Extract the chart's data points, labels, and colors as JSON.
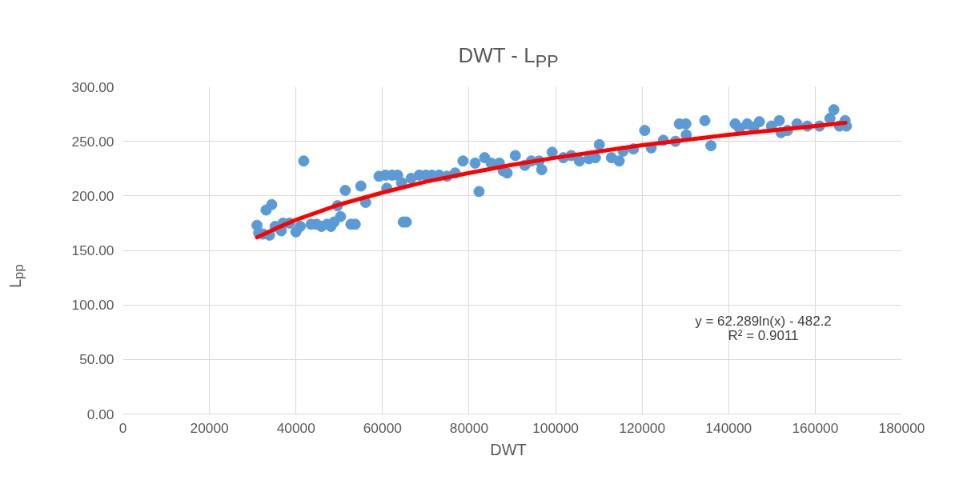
{
  "chart_data": {
    "type": "scatter",
    "title": "DWT - L$_{PP}$",
    "xlabel": "DWT",
    "ylabel": "L$_{pp}$",
    "xlim": [
      0,
      180000
    ],
    "xticks": [
      0,
      20000,
      40000,
      60000,
      80000,
      100000,
      120000,
      140000,
      160000,
      180000
    ],
    "ylim": [
      0,
      300
    ],
    "yticks": [
      {
        "value": 0,
        "label": "0.00"
      },
      {
        "value": 50,
        "label": "50.00"
      },
      {
        "value": 100,
        "label": "100.00"
      },
      {
        "value": 150,
        "label": "150.00"
      },
      {
        "value": 200,
        "label": "200.00"
      },
      {
        "value": 250,
        "label": "250.00"
      },
      {
        "value": 300,
        "label": "300.00"
      }
    ],
    "grid": true,
    "marker": "circle",
    "annotations": [
      "y = 62.289ln(x) - 482.2",
      "R² = 0.9011"
    ],
    "series": [
      {
        "color": "#5b9bd5",
        "x": [
          31000,
          31400,
          32400,
          33100,
          33900,
          34400,
          35200,
          36600,
          37000,
          38500,
          40000,
          41000,
          41800,
          43500,
          44800,
          45900,
          47200,
          48100,
          48800,
          49600,
          50300,
          51400,
          52700,
          53700,
          55000,
          56100,
          59200,
          60700,
          61000,
          62200,
          63500,
          64400,
          64800,
          65500,
          66600,
          68500,
          70000,
          71400,
          73100,
          74900,
          76800,
          78600,
          81400,
          82300,
          83600,
          85100,
          87000,
          87900,
          88800,
          90700,
          92900,
          94400,
          96200,
          96800,
          99200,
          101800,
          103600,
          105500,
          107700,
          110100,
          109200,
          112900,
          114700,
          115600,
          118000,
          120600,
          122100,
          124900,
          127700,
          128600,
          130100,
          130200,
          134500,
          135900,
          141500,
          142500,
          144300,
          145800,
          147100,
          149900,
          151700,
          152100,
          153600,
          155800,
          158200,
          161000,
          163400,
          164300,
          165600,
          166900,
          167200
        ],
        "values": [
          173,
          166,
          165,
          187,
          164,
          192,
          172,
          168,
          175,
          175,
          167,
          172,
          232,
          174,
          174,
          172,
          174,
          172,
          176,
          191,
          181,
          205,
          174,
          174,
          209,
          194,
          218,
          219,
          207,
          219,
          219,
          212,
          176,
          176,
          216,
          219,
          219,
          219,
          219,
          218,
          221,
          232,
          230,
          204,
          235,
          230,
          230,
          223,
          221,
          237,
          228,
          232,
          232,
          224,
          240,
          235,
          237,
          232,
          234,
          247,
          235,
          235,
          232,
          241,
          243,
          260,
          244,
          251,
          250,
          266,
          266,
          256,
          269,
          246,
          266,
          262,
          266,
          263,
          268,
          264,
          269,
          258,
          260,
          266,
          264,
          264,
          271,
          279,
          264,
          269,
          264
        ]
      },
      {
        "type": "line",
        "marker": "none",
        "color": "#ff0000",
        "x": [
          31000,
          35000,
          40000,
          50000,
          60000,
          70000,
          80000,
          90000,
          100000,
          120000,
          140000,
          160000,
          167000
        ],
        "values": [
          162,
          169.5,
          178,
          192,
          203,
          213,
          221,
          228.5,
          235,
          246.5,
          256,
          264,
          267
        ]
      }
    ]
  }
}
